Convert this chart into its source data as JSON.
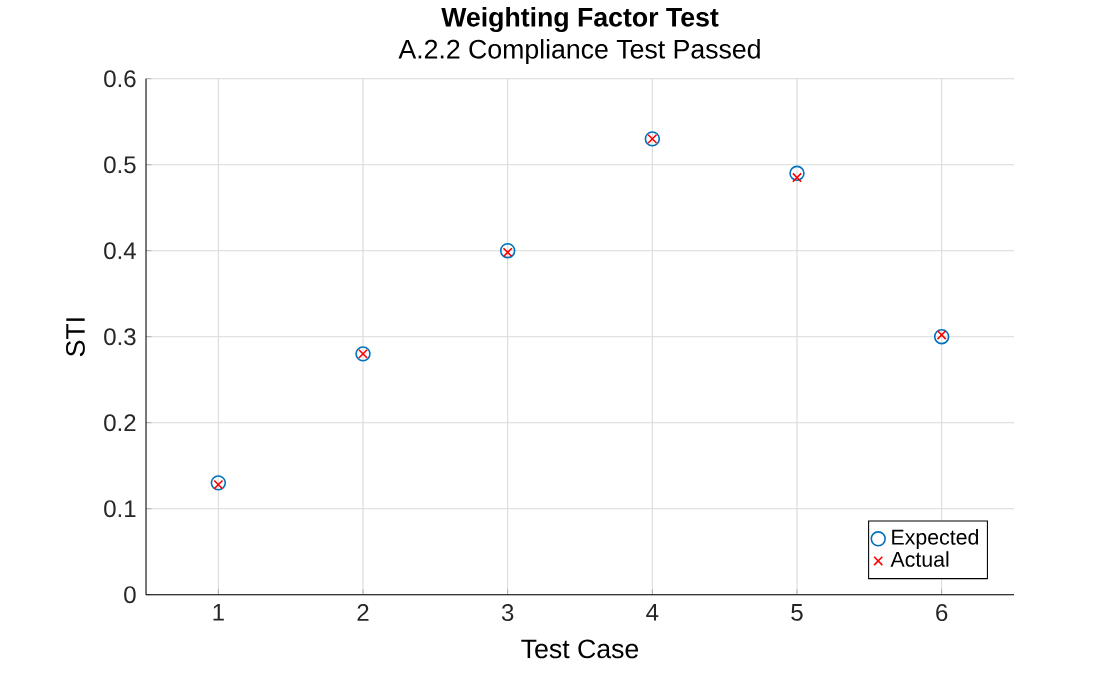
{
  "chart_data": {
    "type": "scatter",
    "title": "**Weighting Factor Test**",
    "subtitle": "A.2.2 Compliance Test Passed",
    "xlabel": "Test Case",
    "ylabel": "STI",
    "x": [
      1,
      2,
      3,
      4,
      5,
      6
    ],
    "series": [
      {
        "name": "Expected",
        "color": "#0072bd",
        "marker": "circle",
        "values": [
          0.13,
          0.28,
          0.4,
          0.53,
          0.49,
          0.3
        ]
      },
      {
        "name": "Actual",
        "color": "#ff0000",
        "marker": "cross",
        "values": [
          0.128,
          0.28,
          0.398,
          0.53,
          0.485,
          0.302
        ]
      }
    ],
    "xlim": [
      0.5,
      6.5
    ],
    "ylim": [
      0,
      0.6
    ],
    "xticks": [
      1,
      2,
      3,
      4,
      5,
      6
    ],
    "yticks": [
      0,
      0.1,
      0.2,
      0.3,
      0.4,
      0.5,
      0.6
    ],
    "grid": true,
    "legend": "bottom right"
  }
}
